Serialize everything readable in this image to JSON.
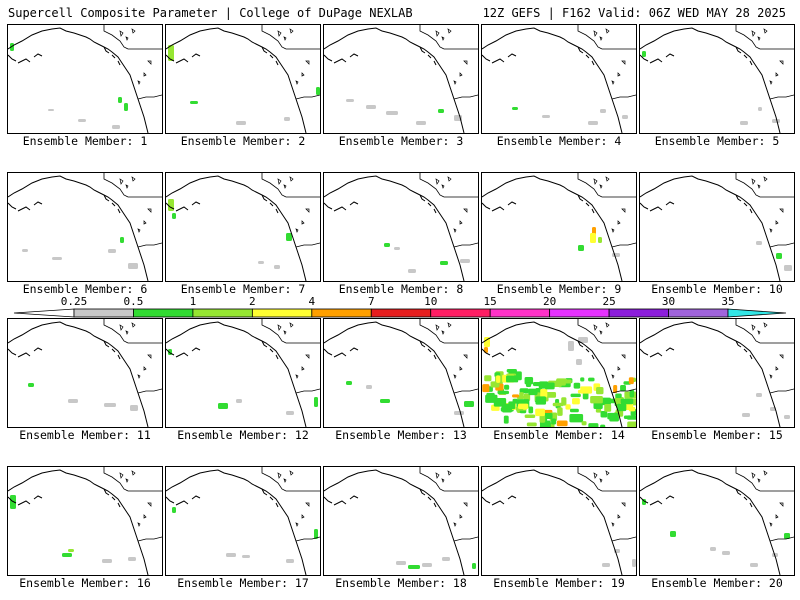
{
  "header": {
    "title_left": "Supercell Composite Parameter | College of DuPage NEXLAB",
    "title_right": "12Z GEFS | F162 Valid: 06Z WED MAY 28 2025"
  },
  "panels": [
    {
      "label": "Ensemble Member: 1"
    },
    {
      "label": "Ensemble Member: 2"
    },
    {
      "label": "Ensemble Member: 3"
    },
    {
      "label": "Ensemble Member: 4"
    },
    {
      "label": "Ensemble Member: 5"
    },
    {
      "label": "Ensemble Member: 6"
    },
    {
      "label": "Ensemble Member: 7"
    },
    {
      "label": "Ensemble Member: 8"
    },
    {
      "label": "Ensemble Member: 9"
    },
    {
      "label": "Ensemble Member: 10"
    },
    {
      "label": "Ensemble Member: 11"
    },
    {
      "label": "Ensemble Member: 12"
    },
    {
      "label": "Ensemble Member: 13"
    },
    {
      "label": "Ensemble Member: 14"
    },
    {
      "label": "Ensemble Member: 15"
    },
    {
      "label": "Ensemble Member: 16"
    },
    {
      "label": "Ensemble Member: 17"
    },
    {
      "label": "Ensemble Member: 18"
    },
    {
      "label": "Ensemble Member: 19"
    },
    {
      "label": "Ensemble Member: 20"
    }
  ],
  "colorbar": {
    "tick_labels": [
      "0.25",
      "0.5",
      "1",
      "2",
      "4",
      "7",
      "10",
      "15",
      "20",
      "25",
      "30",
      "35"
    ],
    "colors": [
      "#c8c8c8",
      "#32dc32",
      "#96e632",
      "#ffff32",
      "#ffa000",
      "#e61e1e",
      "#ff1e64",
      "#ff32c8",
      "#e632ff",
      "#8c1edc",
      "#a064dc"
    ],
    "low_cap_color": "#ffffff",
    "high_cap_color": "#32e6e6"
  },
  "colors": {
    "coastline": "#000000",
    "background": "#ffffff"
  }
}
